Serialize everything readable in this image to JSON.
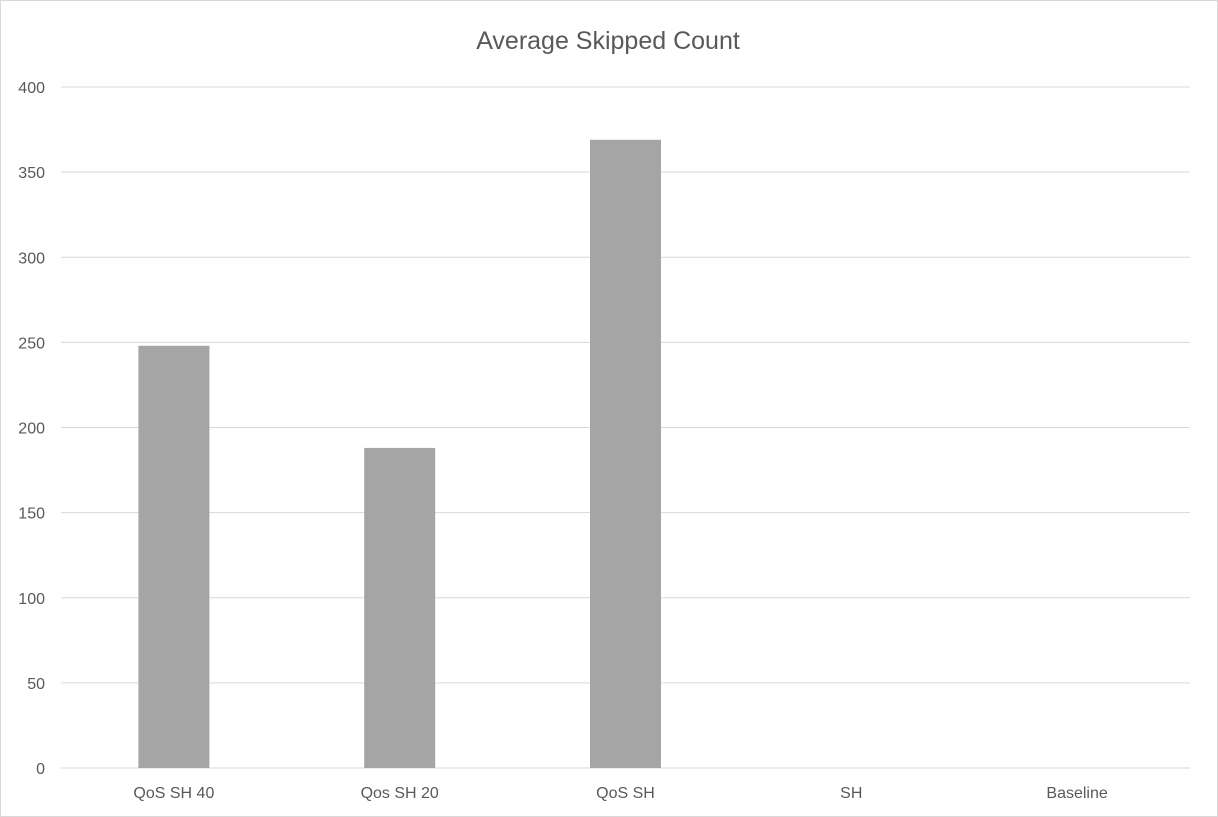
{
  "chart_data": {
    "type": "bar",
    "title": "Average Skipped Count",
    "categories": [
      "QoS SH 40",
      "Qos SH 20",
      "QoS SH",
      "SH",
      "Baseline"
    ],
    "values": [
      248,
      188,
      369,
      0,
      0
    ],
    "yticks": [
      "0",
      "50",
      "100",
      "150",
      "200",
      "250",
      "300",
      "350",
      "400"
    ],
    "ylim": [
      0,
      400
    ],
    "xlabel": "",
    "ylabel": "",
    "grid": true,
    "legend": "none",
    "bar_color": "#a5a5a5"
  }
}
